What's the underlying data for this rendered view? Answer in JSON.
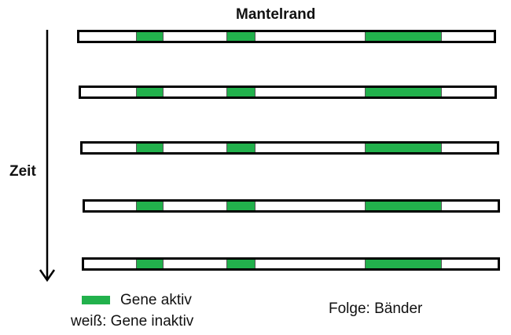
{
  "title": "Mantelrand",
  "axis_label": "Zeit",
  "colors": {
    "active": "#22b14c",
    "inactive": "#ffffff",
    "outline": "#000000"
  },
  "bands": [
    {
      "active_segments": [
        [
          0.14,
          0.207
        ],
        [
          0.357,
          0.425
        ],
        [
          0.687,
          0.87
        ]
      ]
    },
    {
      "active_segments": [
        [
          0.14,
          0.207
        ],
        [
          0.357,
          0.425
        ],
        [
          0.687,
          0.87
        ]
      ]
    },
    {
      "active_segments": [
        [
          0.14,
          0.207
        ],
        [
          0.357,
          0.425
        ],
        [
          0.687,
          0.87
        ]
      ]
    },
    {
      "active_segments": [
        [
          0.14,
          0.207
        ],
        [
          0.357,
          0.425
        ],
        [
          0.687,
          0.87
        ]
      ]
    },
    {
      "active_segments": [
        [
          0.14,
          0.207
        ],
        [
          0.357,
          0.425
        ],
        [
          0.687,
          0.87
        ]
      ]
    }
  ],
  "legend": {
    "active_label": "Gene aktiv",
    "inactive_label": "weiß: Gene inaktiv"
  },
  "caption": "Folge: Bänder"
}
